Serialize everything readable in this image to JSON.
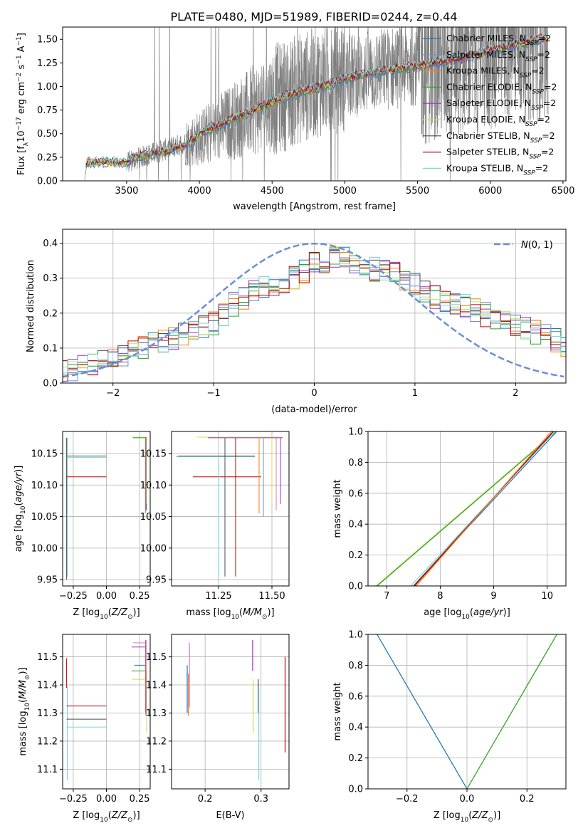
{
  "figure": {
    "title": "PLATE=0480, MJD=51989, FIBERID=0244, z=0.44"
  },
  "legend_entries": [
    {
      "name": "Chabrier MILES, N_SSP=2",
      "base": "Chabrier MILES, N",
      "sub": "SSP",
      "suffix": "=2",
      "color": "#1f77b4"
    },
    {
      "name": "Salpeter MILES, N_SSP=2",
      "base": "Salpeter MILES, N",
      "sub": "SSP",
      "suffix": "=2",
      "color": "#6a8fd6"
    },
    {
      "name": "Kroupa MILES, N_SSP=2",
      "base": "Kroupa MILES, N",
      "sub": "SSP",
      "suffix": "=2",
      "color": "#ff7f0e"
    },
    {
      "name": "Chabrier ELODIE, N_SSP=2",
      "base": "Chabrier ELODIE, N",
      "sub": "SSP",
      "suffix": "=2",
      "color": "#2ca02c"
    },
    {
      "name": "Salpeter ELODIE, N_SSP=2",
      "base": "Salpeter ELODIE, N",
      "sub": "SSP",
      "suffix": "=2",
      "color": "#9b30c4"
    },
    {
      "name": "Kroupa ELODIE, N_SSP=2",
      "base": "Kroupa ELODIE, N",
      "sub": "SSP",
      "suffix": "=2",
      "color": "#c8e05a"
    },
    {
      "name": "Chabrier STELIB, N_SSP=2",
      "base": "Chabrier STELIB, N",
      "sub": "SSP",
      "suffix": "=2",
      "color": "#4d4d4d"
    },
    {
      "name": "Salpeter STELIB, N_SSP=2",
      "base": "Salpeter STELIB, N",
      "sub": "SSP",
      "suffix": "=2",
      "color": "#c00000"
    },
    {
      "name": "Kroupa STELIB, N_SSP=2",
      "base": "Kroupa STELIB, N",
      "sub": "SSP",
      "suffix": "=2",
      "color": "#7fd4e0"
    }
  ],
  "chart_data": [
    {
      "id": "spectrum",
      "type": "line",
      "title": "PLATE=0480, MJD=51989, FIBERID=0244, z=0.44",
      "xlabel": "wavelength [Angstrom, rest frame]",
      "ylabel": "Flux [f_λ 10^-17 erg cm^-2 s^-1 A^-1]",
      "xlim": [
        3060,
        6520
      ],
      "ylim": [
        0,
        1.63
      ],
      "xticks": [
        3500,
        4000,
        4500,
        5000,
        5500,
        6000,
        6500
      ],
      "yticks": [
        0.0,
        0.25,
        0.5,
        0.75,
        1.0,
        1.25,
        1.5
      ],
      "ytick_labels": [
        "0.00",
        "0.25",
        "0.50",
        "0.75",
        "1.00",
        "1.25",
        "1.50"
      ],
      "grid": false,
      "legend": "top-right",
      "data_series": {
        "name": "data",
        "color": "#808080",
        "x_range": [
          3210,
          6400
        ],
        "continuum": [
          [
            3210,
            0.0
          ],
          [
            3230,
            0.2
          ],
          [
            3500,
            0.2
          ],
          [
            3800,
            0.35
          ],
          [
            4000,
            0.45
          ],
          [
            4500,
            0.85
          ],
          [
            4800,
            1.05
          ],
          [
            5000,
            1.1
          ],
          [
            5500,
            1.25
          ],
          [
            6000,
            1.4
          ],
          [
            6400,
            1.55
          ]
        ]
      },
      "model_continuum": [
        [
          3210,
          0.15
        ],
        [
          3230,
          0.2
        ],
        [
          3500,
          0.2
        ],
        [
          3600,
          0.27
        ],
        [
          3800,
          0.32
        ],
        [
          3950,
          0.42
        ],
        [
          4000,
          0.5
        ],
        [
          4300,
          0.7
        ],
        [
          4600,
          0.9
        ],
        [
          4850,
          1.0
        ],
        [
          5000,
          1.08
        ],
        [
          5200,
          1.15
        ],
        [
          5500,
          1.22
        ],
        [
          5800,
          1.3
        ],
        [
          6000,
          1.38
        ],
        [
          6200,
          1.45
        ],
        [
          6400,
          1.52
        ]
      ]
    },
    {
      "id": "residuals",
      "type": "line",
      "xlabel": "(data-model)/error",
      "ylabel": "Normed distribution",
      "xlim": [
        -2.5,
        2.5
      ],
      "ylim": [
        0,
        0.44
      ],
      "xticks": [
        -2,
        -1,
        0,
        1,
        2
      ],
      "xtick_labels": [
        "−2",
        "−1",
        "0",
        "1",
        "2"
      ],
      "yticks": [
        0.0,
        0.1,
        0.2,
        0.3,
        0.4
      ],
      "ytick_labels": [
        "0.0",
        "0.1",
        "0.2",
        "0.3",
        "0.4"
      ],
      "grid": true,
      "legend": "top-right",
      "reference_curve": {
        "name": "𝒩(0,1)",
        "label_script": "N",
        "label_rest": "(0, 1)",
        "color": "#6a8fd6",
        "style": "dashed"
      },
      "histogram_centroid": [
        [
          -2.5,
          0.03
        ],
        [
          -2.0,
          0.07
        ],
        [
          -1.5,
          0.12
        ],
        [
          -1.0,
          0.17
        ],
        [
          -0.75,
          0.24
        ],
        [
          -0.5,
          0.27
        ],
        [
          -0.25,
          0.29
        ],
        [
          0.0,
          0.34
        ],
        [
          0.25,
          0.36
        ],
        [
          0.5,
          0.33
        ],
        [
          0.75,
          0.32
        ],
        [
          1.0,
          0.28
        ],
        [
          1.25,
          0.24
        ],
        [
          1.5,
          0.22
        ],
        [
          1.75,
          0.19
        ],
        [
          2.0,
          0.17
        ],
        [
          2.25,
          0.14
        ],
        [
          2.5,
          0.11
        ]
      ]
    },
    {
      "id": "age-vs-Z",
      "type": "line",
      "xlabel": "Z [log10(Z/Z☉)]",
      "ylabel": "age  [log10(age/yr)]",
      "xlim": [
        -0.33,
        0.33
      ],
      "ylim": [
        9.94,
        10.185
      ],
      "xticks": [
        -0.25,
        0.0,
        0.25
      ],
      "xtick_labels": [
        "−0.25",
        "0.00",
        "0.25"
      ],
      "yticks": [
        9.95,
        10.0,
        10.05,
        10.1,
        10.15
      ],
      "ytick_labels": [
        "9.95",
        "10.00",
        "10.05",
        "10.10",
        "10.15"
      ],
      "grid": true
    },
    {
      "id": "age-vs-mass",
      "type": "line",
      "xlabel": "mass [log10(M/M☉)]",
      "ylabel": "",
      "xlim": [
        11.03,
        11.58
      ],
      "ylim": [
        9.94,
        10.185
      ],
      "xticks": [
        11.25,
        11.5
      ],
      "xtick_labels": [
        "11.25",
        "11.50"
      ],
      "yticks": [
        9.95,
        10.0,
        10.05,
        10.1,
        10.15
      ],
      "ytick_labels": [
        "9.95",
        "10.00",
        "10.05",
        "10.10",
        "10.15"
      ],
      "grid": true
    },
    {
      "id": "massweight-vs-age",
      "type": "line",
      "xlabel": "age  [log10(age/yr)]",
      "ylabel": "mass weight",
      "xlim": [
        6.65,
        10.35
      ],
      "ylim": [
        0.0,
        1.0
      ],
      "xticks": [
        7,
        8,
        9,
        10
      ],
      "xtick_labels": [
        "7",
        "8",
        "9",
        "10"
      ],
      "yticks": [
        0.0,
        0.2,
        0.4,
        0.6,
        0.8,
        1.0
      ],
      "ytick_labels": [
        "0.0",
        "0.2",
        "0.4",
        "0.6",
        "0.8",
        "1.0"
      ],
      "grid": true,
      "series": [
        {
          "name": "Kroupa ELODIE",
          "color": "#c8e05a",
          "points": [
            [
              6.8,
              0.0
            ],
            [
              10.15,
              1.0
            ]
          ]
        },
        {
          "name": "Chabrier ELODIE",
          "color": "#2ca02c",
          "points": [
            [
              6.82,
              0.0
            ],
            [
              10.17,
              1.0
            ]
          ]
        },
        {
          "name": "Kroupa STELIB",
          "color": "#7fd4e0",
          "points": [
            [
              7.45,
              0.0
            ],
            [
              10.15,
              1.0
            ]
          ]
        },
        {
          "name": "Chabrier MILES",
          "color": "#1f77b4",
          "points": [
            [
              7.5,
              0.0
            ],
            [
              10.18,
              1.0
            ]
          ]
        },
        {
          "name": "Chabrier STELIB",
          "color": "#4d4d4d",
          "points": [
            [
              7.5,
              0.0
            ],
            [
              10.12,
              1.0
            ]
          ]
        },
        {
          "name": "Salpeter STELIB",
          "color": "#c00000",
          "points": [
            [
              7.52,
              0.0
            ],
            [
              10.11,
              1.0
            ]
          ]
        },
        {
          "name": "Kroupa MILES",
          "color": "#ff7f0e",
          "points": [
            [
              7.55,
              0.0
            ],
            [
              10.08,
              1.0
            ]
          ]
        }
      ]
    },
    {
      "id": "mass-vs-Z",
      "type": "line",
      "xlabel": "Z [log10(Z/Z☉)]",
      "ylabel": "mass [log10(M/M☉)]",
      "xlim": [
        -0.33,
        0.33
      ],
      "ylim": [
        11.03,
        11.58
      ],
      "xticks": [
        -0.25,
        0.0,
        0.25
      ],
      "xtick_labels": [
        "−0.25",
        "0.00",
        "0.25"
      ],
      "yticks": [
        11.1,
        11.2,
        11.3,
        11.4,
        11.5
      ],
      "ytick_labels": [
        "11.1",
        "11.2",
        "11.3",
        "11.4",
        "11.5"
      ],
      "grid": true
    },
    {
      "id": "mass-vs-EBV",
      "type": "line",
      "xlabel": "E(B-V)",
      "ylabel": "",
      "xlim": [
        0.14,
        0.35
      ],
      "ylim": [
        11.03,
        11.58
      ],
      "xticks": [
        0.2,
        0.3
      ],
      "xtick_labels": [
        "0.2",
        "0.3"
      ],
      "yticks": [
        11.1,
        11.2,
        11.3,
        11.4,
        11.5
      ],
      "ytick_labels": [
        "11.1",
        "11.2",
        "11.3",
        "11.4",
        "11.5"
      ],
      "grid": true,
      "series": [
        {
          "name": "Chabrier MILES",
          "color": "#1f77b4",
          "x": 0.168,
          "y": [
            11.3,
            11.47
          ]
        },
        {
          "name": "Kroupa MILES",
          "color": "#ff7f0e",
          "x": 0.17,
          "y": [
            11.29,
            11.44
          ]
        },
        {
          "name": "Salpeter MILES",
          "color": "#e377c2",
          "x": 0.172,
          "y": [
            11.32,
            11.55
          ]
        },
        {
          "name": "Salpeter ELODIE",
          "color": "#9b30c4",
          "x": 0.285,
          "y": [
            11.45,
            11.56
          ]
        },
        {
          "name": "Kroupa ELODIE",
          "color": "#c8e05a",
          "x": 0.286,
          "y": [
            11.23,
            11.42
          ]
        },
        {
          "name": "Chabrier STELIB",
          "color": "#4d4d4d",
          "x": 0.295,
          "y": [
            11.3,
            11.42
          ]
        },
        {
          "name": "Kroupa STELIB",
          "color": "#7fd4e0",
          "x": 0.296,
          "y": [
            11.06,
            11.39
          ]
        },
        {
          "name": "Salpeter STELIB",
          "color": "#c00000",
          "x": 0.343,
          "y": [
            11.16,
            11.5
          ]
        }
      ]
    },
    {
      "id": "massweight-vs-Z",
      "type": "line",
      "xlabel": "Z [log10(Z/Z☉)]",
      "ylabel": "mass weight",
      "xlim": [
        -0.33,
        0.33
      ],
      "ylim": [
        0.0,
        1.0
      ],
      "xticks": [
        -0.2,
        0.0,
        0.2
      ],
      "xtick_labels": [
        "−0.2",
        "0.0",
        "0.2"
      ],
      "yticks": [
        0.0,
        0.2,
        0.4,
        0.6,
        0.8,
        1.0
      ],
      "ytick_labels": [
        "0.0",
        "0.2",
        "0.4",
        "0.6",
        "0.8",
        "1.0"
      ],
      "grid": true,
      "series": [
        {
          "name": "Kroupa STELIB",
          "color": "#7fd4e0",
          "points": [
            [
              -0.3,
              1.0
            ],
            [
              0.0,
              0.0
            ]
          ]
        },
        {
          "name": "Chabrier MILES",
          "color": "#1f77b4",
          "points": [
            [
              -0.3,
              1.0
            ],
            [
              0.0,
              0.0
            ]
          ]
        },
        {
          "name": "Kroupa ELODIE",
          "color": "#c8e05a",
          "points": [
            [
              0.0,
              0.0
            ],
            [
              0.3,
              1.0
            ]
          ]
        },
        {
          "name": "Chabrier ELODIE",
          "color": "#2ca02c",
          "points": [
            [
              0.0,
              0.0
            ],
            [
              0.3,
              1.0
            ]
          ]
        }
      ]
    }
  ]
}
